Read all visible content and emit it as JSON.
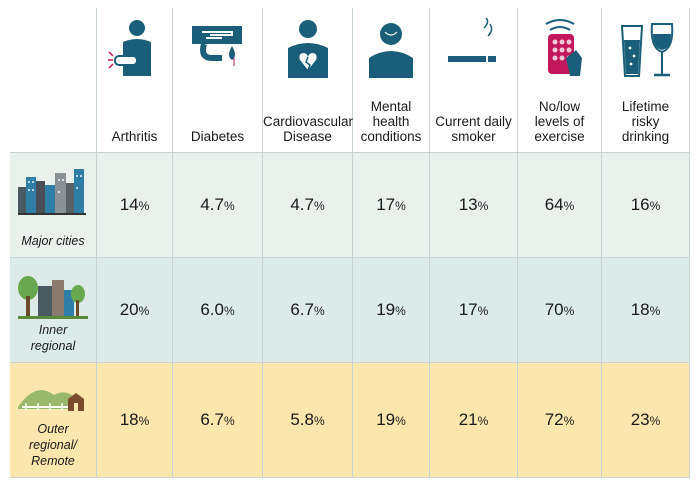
{
  "chart_data": {
    "type": "table",
    "columns": [
      "Arthritis",
      "Diabetes",
      "Cardiovascular Disease",
      "Mental health conditions",
      "Current daily smoker",
      "No/low levels of exercise",
      "Lifetime risky drinking"
    ],
    "column_lines": [
      [
        "Arthritis"
      ],
      [
        "Diabetes"
      ],
      [
        "Cardiovascular",
        "Disease"
      ],
      [
        "Mental",
        "health",
        "conditions"
      ],
      [
        "Current daily",
        "smoker"
      ],
      [
        "No/low",
        "levels of",
        "exercise"
      ],
      [
        "Lifetime",
        "risky",
        "drinking"
      ]
    ],
    "column_icons": [
      "arthritis-icon",
      "diabetes-icon",
      "heart-person-icon",
      "mental-health-icon",
      "cigarette-icon",
      "exercise-phone-icon",
      "drinks-icon"
    ],
    "rows": [
      {
        "name": "Major cities",
        "name_lines": [
          "Major cities"
        ],
        "icon": "city-icon",
        "color": "#e9f1ed",
        "values": [
          [
            "14",
            "%"
          ],
          [
            "4.7",
            "%"
          ],
          [
            "4.7",
            "%"
          ],
          [
            "17",
            "%"
          ],
          [
            "13",
            "%"
          ],
          [
            "64",
            "%"
          ],
          [
            "16",
            "%"
          ]
        ]
      },
      {
        "name": "Inner regional",
        "name_lines": [
          "Inner",
          "regional"
        ],
        "icon": "town-trees-icon",
        "color": "#dcebe8",
        "values": [
          [
            "20",
            "%"
          ],
          [
            "6.0",
            "%"
          ],
          [
            "6.7",
            "%"
          ],
          [
            "19",
            "%"
          ],
          [
            "17",
            "%"
          ],
          [
            "70",
            "%"
          ],
          [
            "18",
            "%"
          ]
        ]
      },
      {
        "name": "Outer regional/ Remote",
        "name_lines": [
          "Outer",
          "regional/",
          "Remote"
        ],
        "icon": "hills-house-icon",
        "color": "#fbe6ad",
        "values": [
          [
            "18",
            "%"
          ],
          [
            "6.7",
            "%"
          ],
          [
            "5.8",
            "%"
          ],
          [
            "19",
            "%"
          ],
          [
            "21",
            "%"
          ],
          [
            "72",
            "%"
          ],
          [
            "23",
            "%"
          ]
        ]
      }
    ]
  },
  "colors": {
    "teal": "#1b5e79",
    "magenta": "#c2185b"
  }
}
